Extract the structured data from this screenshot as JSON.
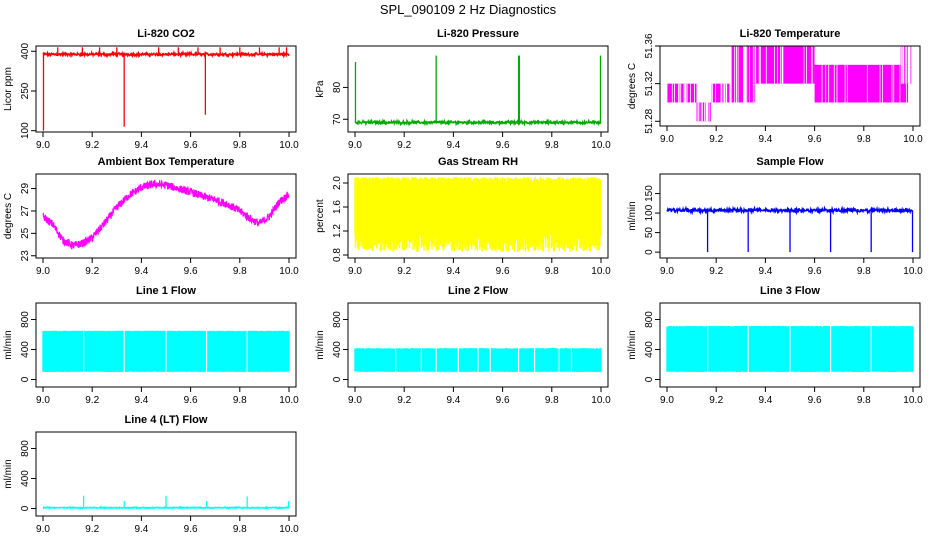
{
  "figure": {
    "title": "SPL_090109  2 Hz Diagnostics"
  },
  "chart_data": [
    {
      "id": "p1",
      "type": "line",
      "title": "Li-820 CO2",
      "ylabel": "Licor ppm",
      "xlim": [
        9.0,
        10.0
      ],
      "ylim": [
        95,
        420
      ],
      "x_ticks": [
        "9.0",
        "9.2",
        "9.4",
        "9.6",
        "9.8",
        "10.0"
      ],
      "y_ticks": [
        "100",
        "250",
        "400"
      ],
      "color": "#ff0000",
      "style": "band",
      "series": [
        {
          "name": "CO2",
          "baseline": [
            385,
            392
          ],
          "noise": 3,
          "spikes": [
            {
              "x": 9.002,
              "y": 100
            },
            {
              "x": 9.33,
              "y": 115
            },
            {
              "x": 9.66,
              "y": 160
            },
            {
              "x": 9.06,
              "y": 415
            },
            {
              "x": 9.16,
              "y": 415
            },
            {
              "x": 9.23,
              "y": 415
            },
            {
              "x": 9.3,
              "y": 415
            },
            {
              "x": 9.47,
              "y": 415
            },
            {
              "x": 9.55,
              "y": 415
            },
            {
              "x": 9.63,
              "y": 415
            },
            {
              "x": 9.72,
              "y": 415
            },
            {
              "x": 9.8,
              "y": 415
            },
            {
              "x": 9.88,
              "y": 415
            },
            {
              "x": 9.96,
              "y": 415
            },
            {
              "x": 9.99,
              "y": 415
            }
          ]
        }
      ]
    },
    {
      "id": "p2",
      "type": "line",
      "title": "Li-820 Pressure",
      "ylabel": "kPa",
      "xlim": [
        9.0,
        10.0
      ],
      "ylim": [
        66,
        93
      ],
      "x_ticks": [
        "9.0",
        "9.2",
        "9.4",
        "9.6",
        "9.8",
        "10.0"
      ],
      "y_ticks": [
        "70",
        "80"
      ],
      "color": "#00aa00",
      "style": "band",
      "series": [
        {
          "name": "Pressure",
          "baseline": [
            68.7,
            69.3
          ],
          "noise": 0.25,
          "spikes": [
            {
              "x": 9.002,
              "y": 88
            },
            {
              "x": 9.33,
              "y": 90
            },
            {
              "x": 9.665,
              "y": 90
            },
            {
              "x": 9.668,
              "y": 90
            },
            {
              "x": 9.998,
              "y": 90
            }
          ]
        }
      ]
    },
    {
      "id": "p3",
      "type": "line",
      "title": "Li-820 Temperature",
      "ylabel": "degrees C",
      "xlim": [
        9.0,
        10.0
      ],
      "ylim": [
        51.275,
        51.36
      ],
      "x_ticks": [
        "9.0",
        "9.2",
        "9.4",
        "9.6",
        "9.8",
        "10.0"
      ],
      "y_ticks": [
        "51.28",
        "51.32",
        "51.36"
      ],
      "color": "#ff00ff",
      "style": "levels",
      "series": [
        {
          "name": "Temperature",
          "levels": [
            51.28,
            51.3,
            51.32,
            51.34,
            51.36
          ],
          "segments": [
            {
              "x0": 9.0,
              "x1": 9.12,
              "lo": 51.3,
              "hi": 51.32
            },
            {
              "x0": 9.12,
              "x1": 9.18,
              "lo": 51.28,
              "hi": 51.3
            },
            {
              "x0": 9.18,
              "x1": 9.26,
              "lo": 51.3,
              "hi": 51.32
            },
            {
              "x0": 9.26,
              "x1": 9.36,
              "lo": 51.3,
              "hi": 51.36
            },
            {
              "x0": 9.36,
              "x1": 9.6,
              "lo": 51.32,
              "hi": 51.36
            },
            {
              "x0": 9.6,
              "x1": 9.98,
              "lo": 51.3,
              "hi": 51.34
            },
            {
              "x0": 9.95,
              "x1": 10.0,
              "lo": 51.32,
              "hi": 51.36
            }
          ]
        }
      ]
    },
    {
      "id": "p4",
      "type": "line",
      "title": "Ambient Box Temperature",
      "ylabel": "degrees C",
      "xlim": [
        9.0,
        10.0
      ],
      "ylim": [
        22.8,
        30.3
      ],
      "x_ticks": [
        "9.0",
        "9.2",
        "9.4",
        "9.6",
        "9.8",
        "10.0"
      ],
      "y_ticks": [
        "23",
        "25",
        "27",
        "29"
      ],
      "color": "#ff00ff",
      "style": "curve",
      "series": [
        {
          "name": "Box temperature",
          "noise": 0.35,
          "points": [
            {
              "x": 9.0,
              "y": 26.5
            },
            {
              "x": 9.04,
              "y": 25.8
            },
            {
              "x": 9.08,
              "y": 24.4
            },
            {
              "x": 9.12,
              "y": 23.9
            },
            {
              "x": 9.16,
              "y": 24.1
            },
            {
              "x": 9.2,
              "y": 24.6
            },
            {
              "x": 9.25,
              "y": 25.9
            },
            {
              "x": 9.3,
              "y": 27.3
            },
            {
              "x": 9.35,
              "y": 28.4
            },
            {
              "x": 9.4,
              "y": 29.1
            },
            {
              "x": 9.45,
              "y": 29.4
            },
            {
              "x": 9.5,
              "y": 29.3
            },
            {
              "x": 9.55,
              "y": 29.0
            },
            {
              "x": 9.6,
              "y": 28.7
            },
            {
              "x": 9.65,
              "y": 28.3
            },
            {
              "x": 9.7,
              "y": 28.0
            },
            {
              "x": 9.75,
              "y": 27.6
            },
            {
              "x": 9.8,
              "y": 27.0
            },
            {
              "x": 9.85,
              "y": 26.2
            },
            {
              "x": 9.88,
              "y": 25.9
            },
            {
              "x": 9.92,
              "y": 26.5
            },
            {
              "x": 9.96,
              "y": 27.8
            },
            {
              "x": 10.0,
              "y": 28.5
            }
          ]
        }
      ]
    },
    {
      "id": "p5",
      "type": "line",
      "title": "Gas Stream RH",
      "ylabel": "percent",
      "xlim": [
        9.0,
        10.0
      ],
      "ylim": [
        0.75,
        2.15
      ],
      "x_ticks": [
        "9.0",
        "9.2",
        "9.4",
        "9.6",
        "9.8",
        "10.0"
      ],
      "y_ticks": [
        "0.8",
        "1.2",
        "1.6",
        "2.0"
      ],
      "color": "#ffff00",
      "style": "fill",
      "series": [
        {
          "name": "RH",
          "top": [
            2.0,
            2.1
          ],
          "bottom": [
            0.85,
            1.2
          ]
        }
      ]
    },
    {
      "id": "p6",
      "type": "line",
      "title": "Sample Flow",
      "ylabel": "ml/min",
      "xlim": [
        9.0,
        10.0
      ],
      "ylim": [
        -15,
        200
      ],
      "x_ticks": [
        "9.0",
        "9.2",
        "9.4",
        "9.6",
        "9.8",
        "10.0"
      ],
      "y_ticks": [
        "0",
        "50",
        "100",
        "150"
      ],
      "color": "#0000ff",
      "style": "band",
      "series": [
        {
          "name": "Sample flow",
          "baseline": [
            104,
            110
          ],
          "noise": 3,
          "spikes": [
            {
              "x": 9.165,
              "y": 0
            },
            {
              "x": 9.33,
              "y": 0
            },
            {
              "x": 9.5,
              "y": 0
            },
            {
              "x": 9.665,
              "y": 0
            },
            {
              "x": 9.83,
              "y": 0
            },
            {
              "x": 9.998,
              "y": 0
            }
          ]
        }
      ]
    },
    {
      "id": "p7",
      "type": "line",
      "title": "Line 1 Flow",
      "ylabel": "ml/min",
      "xlim": [
        9.0,
        10.0
      ],
      "ylim": [
        -100,
        1020
      ],
      "x_ticks": [
        "9.0",
        "9.2",
        "9.4",
        "9.6",
        "9.8",
        "10.0"
      ],
      "y_ticks": [
        "0",
        "400",
        "800"
      ],
      "color": "#00ffff",
      "style": "fill",
      "series": [
        {
          "name": "Line 1",
          "top": [
            640,
            650
          ],
          "bottom": [
            100,
            110
          ],
          "gaps": [
            9.165,
            9.33,
            9.5,
            9.665,
            9.83
          ]
        }
      ]
    },
    {
      "id": "p8",
      "type": "line",
      "title": "Line 2 Flow",
      "ylabel": "ml/min",
      "xlim": [
        9.0,
        10.0
      ],
      "ylim": [
        -100,
        1020
      ],
      "x_ticks": [
        "9.0",
        "9.2",
        "9.4",
        "9.6",
        "9.8",
        "10.0"
      ],
      "y_ticks": [
        "0",
        "400",
        "800"
      ],
      "color": "#00ffff",
      "style": "fill",
      "series": [
        {
          "name": "Line 2",
          "top": [
            400,
            420
          ],
          "bottom": [
            100,
            110
          ],
          "gaps": [
            9.165,
            9.27,
            9.33,
            9.42,
            9.5,
            9.55,
            9.665,
            9.73,
            9.83,
            9.88
          ]
        }
      ]
    },
    {
      "id": "p9",
      "type": "line",
      "title": "Line 3 Flow",
      "ylabel": "ml/min",
      "xlim": [
        9.0,
        10.0
      ],
      "ylim": [
        -100,
        1020
      ],
      "x_ticks": [
        "9.0",
        "9.2",
        "9.4",
        "9.6",
        "9.8",
        "10.0"
      ],
      "y_ticks": [
        "0",
        "400",
        "800"
      ],
      "color": "#00ffff",
      "style": "fill",
      "series": [
        {
          "name": "Line 3",
          "top": [
            700,
            715
          ],
          "bottom": [
            100,
            110
          ],
          "gaps": [
            9.165,
            9.33,
            9.5,
            9.665,
            9.83
          ]
        }
      ]
    },
    {
      "id": "p10",
      "type": "line",
      "title": "Line 4 (LT) Flow",
      "ylabel": "ml/min",
      "xlim": [
        9.0,
        10.0
      ],
      "ylim": [
        -100,
        1020
      ],
      "x_ticks": [
        "9.0",
        "9.2",
        "9.4",
        "9.6",
        "9.8",
        "10.0"
      ],
      "y_ticks": [
        "0",
        "400",
        "800"
      ],
      "color": "#00ffff",
      "style": "band",
      "series": [
        {
          "name": "Line 4",
          "baseline": [
            5,
            15
          ],
          "noise": 4,
          "spikes": [
            {
              "x": 9.165,
              "y": 170
            },
            {
              "x": 9.33,
              "y": 100
            },
            {
              "x": 9.5,
              "y": 170
            },
            {
              "x": 9.665,
              "y": 100
            },
            {
              "x": 9.83,
              "y": 160
            },
            {
              "x": 9.998,
              "y": 100
            }
          ]
        }
      ]
    }
  ]
}
